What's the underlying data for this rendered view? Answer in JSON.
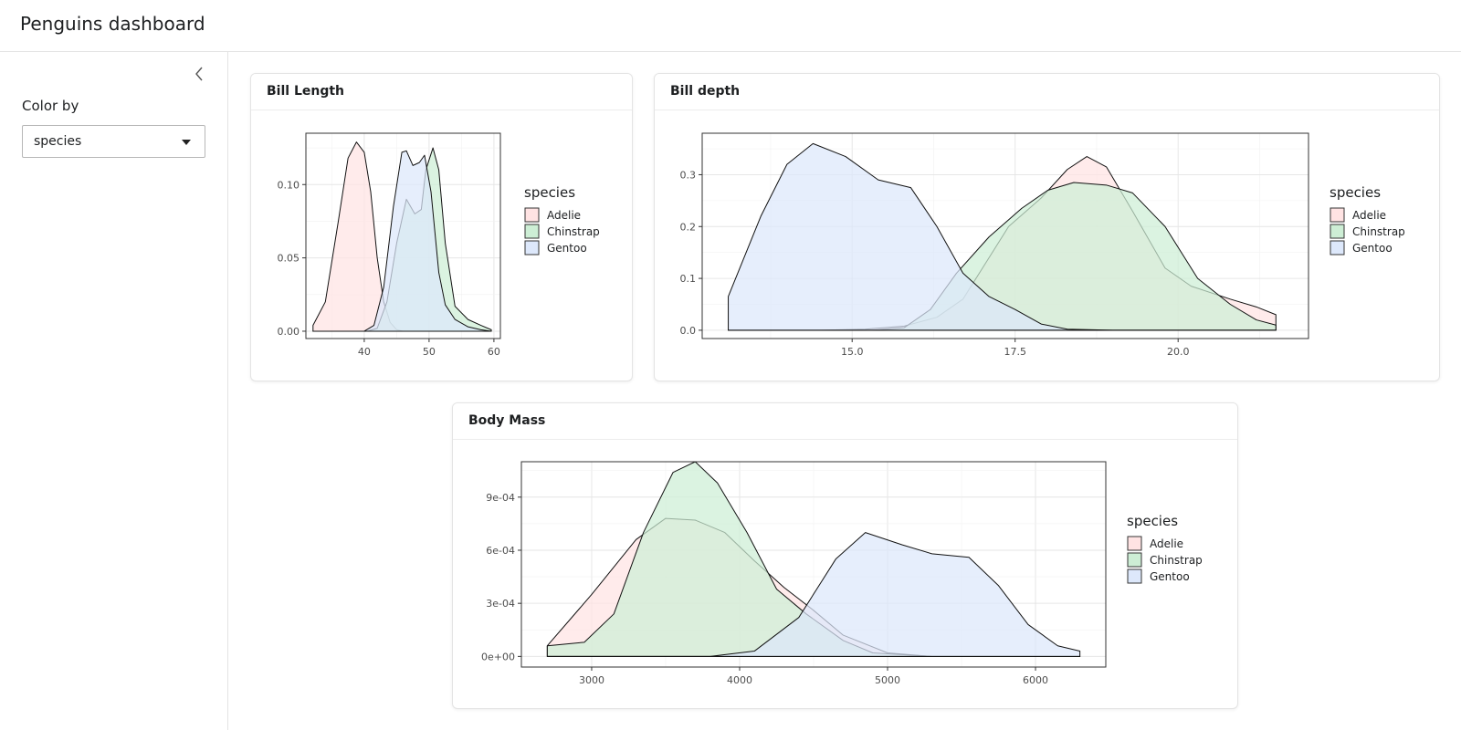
{
  "app": {
    "title": "Penguins dashboard"
  },
  "sidebar": {
    "color_by_label": "Color by",
    "select_value": "species",
    "collapse_icon": "chevron-left-icon"
  },
  "colors": {
    "Adelie": "#ffe3e3",
    "Chinstrap": "#cdeed5",
    "Gentoo": "#dde8fb",
    "line": "#111111",
    "grid": "#ebebeb"
  },
  "cards": {
    "bill_length": {
      "title": "Bill Length"
    },
    "bill_depth": {
      "title": "Bill depth"
    },
    "body_mass": {
      "title": "Body Mass"
    }
  },
  "chart_data": [
    {
      "id": "bill_length",
      "type": "area",
      "title": "",
      "xlabel": "",
      "ylabel": "",
      "legend_title": "species",
      "legend_position": "right",
      "grid": true,
      "xlim": [
        31,
        61
      ],
      "ylim": [
        -0.005,
        0.135
      ],
      "x_ticks": [
        40,
        50,
        60
      ],
      "x_tick_labels": [
        "40",
        "50",
        "60"
      ],
      "y_ticks": [
        0,
        0.05,
        0.1
      ],
      "y_tick_labels": [
        "0.00",
        "0.05",
        "0.10"
      ],
      "series": [
        {
          "name": "Adelie",
          "points": [
            [
              32.1,
              0.004
            ],
            [
              34,
              0.02
            ],
            [
              36,
              0.075
            ],
            [
              37.5,
              0.118
            ],
            [
              38.8,
              0.129
            ],
            [
              40,
              0.122
            ],
            [
              41,
              0.095
            ],
            [
              42,
              0.05
            ],
            [
              43,
              0.02
            ],
            [
              44,
              0.006
            ],
            [
              45,
              0.001
            ],
            [
              46,
              0
            ],
            [
              59.6,
              0
            ]
          ]
        },
        {
          "name": "Chinstrap",
          "points": [
            [
              32.1,
              0
            ],
            [
              40.5,
              0
            ],
            [
              42,
              0.002
            ],
            [
              43.5,
              0.02
            ],
            [
              45,
              0.06
            ],
            [
              46.5,
              0.09
            ],
            [
              47.8,
              0.08
            ],
            [
              48.8,
              0.083
            ],
            [
              49.5,
              0.11
            ],
            [
              50.6,
              0.125
            ],
            [
              51.5,
              0.11
            ],
            [
              52.5,
              0.06
            ],
            [
              54,
              0.017
            ],
            [
              56,
              0.008
            ],
            [
              58,
              0.004
            ],
            [
              59.6,
              0.001
            ]
          ]
        },
        {
          "name": "Gentoo",
          "points": [
            [
              32.1,
              0
            ],
            [
              40,
              0
            ],
            [
              41.5,
              0.004
            ],
            [
              43,
              0.03
            ],
            [
              44.5,
              0.085
            ],
            [
              45.8,
              0.122
            ],
            [
              46.5,
              0.123
            ],
            [
              47.5,
              0.113
            ],
            [
              48.5,
              0.115
            ],
            [
              49.3,
              0.12
            ],
            [
              50.3,
              0.095
            ],
            [
              51.5,
              0.04
            ],
            [
              52.5,
              0.018
            ],
            [
              54,
              0.008
            ],
            [
              56,
              0.003
            ],
            [
              58,
              0.001
            ],
            [
              59.6,
              0
            ]
          ]
        }
      ]
    },
    {
      "id": "bill_depth",
      "type": "area",
      "title": "",
      "xlabel": "",
      "ylabel": "",
      "legend_title": "species",
      "legend_position": "right",
      "grid": true,
      "xlim": [
        12.7,
        22.0
      ],
      "ylim": [
        -0.016,
        0.38
      ],
      "x_ticks": [
        15.0,
        17.5,
        20.0
      ],
      "x_tick_labels": [
        "15.0",
        "17.5",
        "20.0"
      ],
      "y_ticks": [
        0,
        0.1,
        0.2,
        0.3
      ],
      "y_tick_labels": [
        "0.0",
        "0.1",
        "0.2",
        "0.3"
      ],
      "series": [
        {
          "name": "Adelie",
          "points": [
            [
              13.1,
              0
            ],
            [
              14.5,
              0
            ],
            [
              15.2,
              0.002
            ],
            [
              15.8,
              0.008
            ],
            [
              16.3,
              0.025
            ],
            [
              16.7,
              0.06
            ],
            [
              17.0,
              0.12
            ],
            [
              17.4,
              0.2
            ],
            [
              17.9,
              0.255
            ],
            [
              18.3,
              0.31
            ],
            [
              18.6,
              0.335
            ],
            [
              18.9,
              0.315
            ],
            [
              19.3,
              0.23
            ],
            [
              19.8,
              0.12
            ],
            [
              20.2,
              0.085
            ],
            [
              20.8,
              0.06
            ],
            [
              21.2,
              0.045
            ],
            [
              21.5,
              0.03
            ]
          ]
        },
        {
          "name": "Chinstrap",
          "points": [
            [
              13.1,
              0
            ],
            [
              15.3,
              0
            ],
            [
              15.8,
              0.005
            ],
            [
              16.2,
              0.04
            ],
            [
              16.6,
              0.11
            ],
            [
              17.1,
              0.18
            ],
            [
              17.6,
              0.235
            ],
            [
              18.0,
              0.27
            ],
            [
              18.4,
              0.285
            ],
            [
              18.9,
              0.28
            ],
            [
              19.3,
              0.265
            ],
            [
              19.8,
              0.2
            ],
            [
              20.3,
              0.1
            ],
            [
              20.8,
              0.05
            ],
            [
              21.2,
              0.02
            ],
            [
              21.5,
              0.01
            ]
          ]
        },
        {
          "name": "Gentoo",
          "points": [
            [
              13.1,
              0.065
            ],
            [
              13.6,
              0.22
            ],
            [
              14.0,
              0.32
            ],
            [
              14.4,
              0.36
            ],
            [
              14.9,
              0.335
            ],
            [
              15.4,
              0.29
            ],
            [
              15.9,
              0.275
            ],
            [
              16.3,
              0.2
            ],
            [
              16.7,
              0.11
            ],
            [
              17.1,
              0.065
            ],
            [
              17.5,
              0.04
            ],
            [
              17.9,
              0.012
            ],
            [
              18.3,
              0.002
            ],
            [
              19.0,
              0
            ],
            [
              21.5,
              0
            ]
          ]
        }
      ]
    },
    {
      "id": "body_mass",
      "type": "area",
      "title": "",
      "xlabel": "",
      "ylabel": "",
      "legend_title": "species",
      "legend_position": "right",
      "grid": true,
      "xlim": [
        2525,
        6475
      ],
      "ylim": [
        -6e-05,
        0.0011
      ],
      "x_ticks": [
        3000,
        4000,
        5000,
        6000
      ],
      "x_tick_labels": [
        "3000",
        "4000",
        "5000",
        "6000"
      ],
      "y_ticks": [
        0,
        0.0003,
        0.0006,
        0.0009
      ],
      "y_tick_labels": [
        "0e+00",
        "3e-04",
        "6e-04",
        "9e-04"
      ],
      "series": [
        {
          "name": "Adelie",
          "points": [
            [
              2700,
              6e-05
            ],
            [
              3000,
              0.00035
            ],
            [
              3300,
              0.00066
            ],
            [
              3500,
              0.00078
            ],
            [
              3700,
              0.00077
            ],
            [
              3900,
              0.0007
            ],
            [
              4100,
              0.00054
            ],
            [
              4300,
              0.00039
            ],
            [
              4500,
              0.00026
            ],
            [
              4700,
              0.00012
            ],
            [
              5000,
              2e-05
            ],
            [
              5300,
              0
            ],
            [
              6300,
              0
            ]
          ]
        },
        {
          "name": "Chinstrap",
          "points": [
            [
              2700,
              6e-05
            ],
            [
              2950,
              8e-05
            ],
            [
              3150,
              0.00024
            ],
            [
              3350,
              0.0007
            ],
            [
              3550,
              0.00104
            ],
            [
              3700,
              0.0011
            ],
            [
              3850,
              0.00098
            ],
            [
              4050,
              0.0007
            ],
            [
              4250,
              0.00038
            ],
            [
              4450,
              0.00024
            ],
            [
              4700,
              9e-05
            ],
            [
              4900,
              2e-05
            ],
            [
              5300,
              0
            ],
            [
              6300,
              0
            ]
          ]
        },
        {
          "name": "Gentoo",
          "points": [
            [
              2700,
              0
            ],
            [
              3800,
              0
            ],
            [
              4100,
              3e-05
            ],
            [
              4400,
              0.00022
            ],
            [
              4650,
              0.00055
            ],
            [
              4850,
              0.0007
            ],
            [
              5100,
              0.00063
            ],
            [
              5300,
              0.00058
            ],
            [
              5550,
              0.00056
            ],
            [
              5750,
              0.0004
            ],
            [
              5950,
              0.00018
            ],
            [
              6150,
              6e-05
            ],
            [
              6300,
              3e-05
            ]
          ]
        }
      ]
    }
  ]
}
